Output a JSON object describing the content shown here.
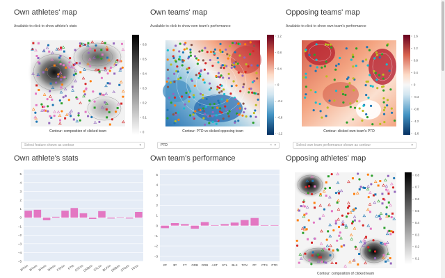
{
  "panels": {
    "own_athletes_map": {
      "title": "Own athletes' map",
      "subtitle": "Available to click to show athlete's stats",
      "caption": "Contour:  composition of clicked team",
      "colorbar_ticks": [
        "0.6",
        "0.5",
        "0.4",
        "0.3",
        "0.2",
        "0.1",
        "0"
      ],
      "colorscale": "greys"
    },
    "own_teams_map": {
      "title": "Own teams' map",
      "subtitle": "Available to click to show own team's performance",
      "caption": "Contour: PTD vs clicked opposing team",
      "colorbar_ticks": [
        "1.2",
        "0.8",
        "0.4",
        "0",
        "-0.4",
        "-0.8",
        "-1.2"
      ],
      "colorscale": "rdbu"
    },
    "opposing_teams_map": {
      "title": "Opposing teams' map",
      "subtitle": "Available to click to show own team's performance",
      "caption": "Contour:  clicked own team's PTD",
      "colorbar_ticks": [
        "1.6",
        "1.2",
        "0.8",
        "0.4",
        "0",
        "-0.4",
        "-0.8",
        "-1.2",
        "-1.6"
      ],
      "colorscale": "rdbu"
    },
    "opposing_athletes_map": {
      "title": "Opposing athletes' map",
      "caption": "Contour:  composition of clicked team",
      "colorbar_ticks": [
        "0.8",
        "0.7",
        "0.6",
        "0.5",
        "0.4",
        "0.3",
        "0.2",
        "0.1"
      ],
      "colorscale": "greys"
    }
  },
  "dropdowns": {
    "own_athletes_feature": {
      "placeholder": "Select feature shown as contour",
      "value": "",
      "arrow": "▾"
    },
    "own_teams_feature": {
      "placeholder": "",
      "value": "PTD",
      "clear": "×",
      "arrow": "▾"
    },
    "opposing_teams_feature": {
      "placeholder": "Select own team performance shown as contour",
      "value": "",
      "arrow": "▾"
    }
  },
  "chart_data": [
    {
      "type": "bar",
      "title": "Own athlete's stats",
      "categories": [
        "2PA/m",
        "3PA/m",
        "2PA/m",
        "3PA/m",
        "FTA/m",
        "FT%",
        "AST/m",
        "ORB/m",
        "STL/m",
        "BLK/m",
        "DRB/m",
        "STO/m",
        "PF/m"
      ],
      "values": [
        0.8,
        0.9,
        -0.3,
        0.1,
        0.8,
        1.1,
        0.5,
        -0.15,
        0.75,
        -0.1,
        0.05,
        -0.1,
        0.65
      ],
      "ylim": [
        -5,
        5.5
      ],
      "yticks": [
        "5",
        "4",
        "3",
        "2",
        "1",
        "0",
        "−1",
        "−2",
        "−3",
        "−4",
        "−5"
      ],
      "color": "#e377c2",
      "background": "#e5ecf6"
    },
    {
      "type": "bar",
      "title": "Own team's performance",
      "categories": [
        "2P",
        "3P",
        "FT",
        "ORB",
        "DRB",
        "AST",
        "STL",
        "BLK",
        "TOV",
        "PF",
        "PTS",
        "PTD"
      ],
      "values": [
        -0.25,
        0.25,
        0.15,
        -0.3,
        0.35,
        0.05,
        0.15,
        0.3,
        0.55,
        0.75,
        0.05,
        0.05
      ],
      "ylim": [
        -3.5,
        5.5
      ],
      "yticks": [
        "5",
        "4",
        "3",
        "2",
        "1",
        "0",
        "−1",
        "−2",
        "−3"
      ],
      "color": "#e377c2",
      "background": "#e5ecf6"
    }
  ]
}
